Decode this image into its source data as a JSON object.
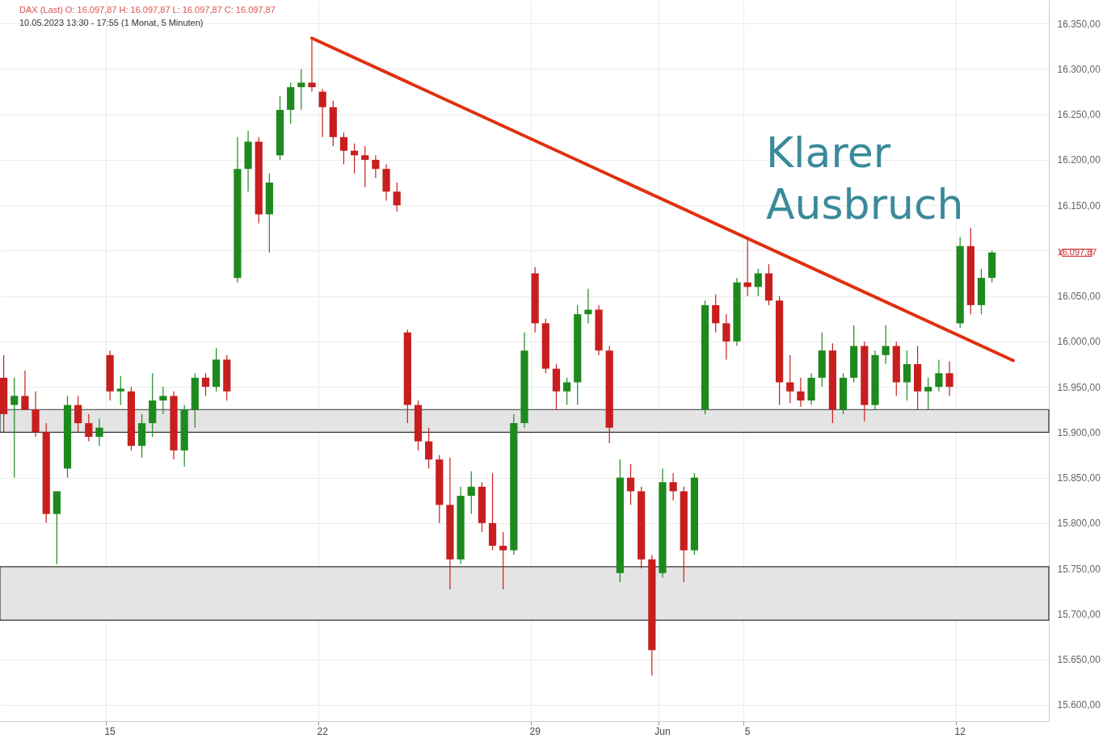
{
  "chart_data": {
    "type": "candlestick",
    "title": "DAX (Last)  O: 16.097,87  H: 16.097,87  L: 16.097,87  C: 16.097,87",
    "subtitle": "10.05.2023 13:30 - 17:55   (1 Monat, 5 Minuten)",
    "categories": [
      null,
      null,
      null,
      null,
      null,
      null,
      null,
      null,
      null,
      null,
      "15",
      null,
      null,
      null,
      null,
      null,
      null,
      null,
      null,
      null,
      null,
      null,
      null,
      null,
      null,
      null,
      null,
      null,
      null,
      null,
      "22",
      null,
      null,
      null,
      null,
      null,
      null,
      null,
      null,
      null,
      null,
      null,
      null,
      null,
      null,
      null,
      null,
      null,
      null,
      null,
      "29",
      null,
      null,
      null,
      null,
      null,
      null,
      null,
      null,
      null,
      null,
      null,
      "Jun",
      null,
      null,
      null,
      null,
      null,
      null,
      null,
      "5",
      null,
      null,
      null,
      null,
      null,
      null,
      null,
      null,
      null,
      null,
      null,
      null,
      null,
      null,
      null,
      null,
      null,
      null,
      null,
      "12",
      null,
      null,
      null,
      null,
      null,
      null,
      null,
      null
    ],
    "ohlc": [
      [
        15960,
        15985,
        15900,
        15920
      ],
      [
        15930,
        15960,
        15850,
        15940
      ],
      [
        15940,
        15968,
        15925,
        15925
      ],
      [
        15925,
        15945,
        15895,
        15900
      ],
      [
        15900,
        15910,
        15800,
        15810
      ],
      [
        15810,
        15835,
        15755,
        15835
      ],
      [
        15860,
        15940,
        15850,
        15930
      ],
      [
        15930,
        15940,
        15900,
        15910
      ],
      [
        15910,
        15920,
        15890,
        15895
      ],
      [
        15895,
        15915,
        15885,
        15905
      ],
      [
        15985,
        15990,
        15935,
        15945
      ],
      [
        15945,
        15962,
        15930,
        15948
      ],
      [
        15945,
        15950,
        15880,
        15885
      ],
      [
        15885,
        15920,
        15872,
        15910
      ],
      [
        15910,
        15965,
        15895,
        15935
      ],
      [
        15935,
        15950,
        15920,
        15940
      ],
      [
        15940,
        15945,
        15870,
        15880
      ],
      [
        15880,
        15930,
        15862,
        15925
      ],
      [
        15925,
        15965,
        15905,
        15960
      ],
      [
        15960,
        15965,
        15940,
        15950
      ],
      [
        15950,
        15993,
        15945,
        15980
      ],
      [
        15980,
        15985,
        15935,
        15945
      ],
      [
        16070,
        16225,
        16065,
        16190
      ],
      [
        16190,
        16232,
        16165,
        16220
      ],
      [
        16220,
        16225,
        16130,
        16140
      ],
      [
        16140,
        16185,
        16098,
        16175
      ],
      [
        16205,
        16270,
        16200,
        16255
      ],
      [
        16255,
        16285,
        16240,
        16280
      ],
      [
        16280,
        16300,
        16255,
        16285
      ],
      [
        16285,
        16332,
        16275,
        16280
      ],
      [
        16275,
        16278,
        16225,
        16258
      ],
      [
        16258,
        16265,
        16215,
        16225
      ],
      [
        16225,
        16230,
        16195,
        16210
      ],
      [
        16210,
        16218,
        16185,
        16205
      ],
      [
        16205,
        16215,
        16170,
        16200
      ],
      [
        16200,
        16205,
        16180,
        16190
      ],
      [
        16190,
        16195,
        16155,
        16165
      ],
      [
        16165,
        16175,
        16143,
        16150
      ],
      [
        16010,
        16013,
        15910,
        15930
      ],
      [
        15930,
        15935,
        15880,
        15890
      ],
      [
        15890,
        15905,
        15860,
        15870
      ],
      [
        15870,
        15875,
        15800,
        15820
      ],
      [
        15820,
        15872,
        15727,
        15760
      ],
      [
        15760,
        15840,
        15755,
        15830
      ],
      [
        15830,
        15857,
        15810,
        15840
      ],
      [
        15840,
        15845,
        15790,
        15800
      ],
      [
        15800,
        15855,
        15770,
        15775
      ],
      [
        15775,
        15790,
        15727,
        15770
      ],
      [
        15770,
        15920,
        15765,
        15910
      ],
      [
        15910,
        16010,
        15905,
        15990
      ],
      [
        16075,
        16082,
        16010,
        16020
      ],
      [
        16020,
        16025,
        15965,
        15970
      ],
      [
        15970,
        15975,
        15925,
        15945
      ],
      [
        15945,
        15960,
        15930,
        15955
      ],
      [
        15955,
        16040,
        15930,
        16030
      ],
      [
        16030,
        16058,
        16020,
        16035
      ],
      [
        16035,
        16040,
        15985,
        15990
      ],
      [
        15990,
        15995,
        15888,
        15905
      ],
      [
        15745,
        15870,
        15735,
        15850
      ],
      [
        15850,
        15865,
        15820,
        15835
      ],
      [
        15835,
        15840,
        15750,
        15760
      ],
      [
        15760,
        15765,
        15632,
        15660
      ],
      [
        15745,
        15860,
        15740,
        15845
      ],
      [
        15845,
        15855,
        15825,
        15835
      ],
      [
        15835,
        15840,
        15735,
        15770
      ],
      [
        15770,
        15855,
        15765,
        15850
      ],
      [
        15925,
        16045,
        15920,
        16040
      ],
      [
        16040,
        16052,
        16010,
        16020
      ],
      [
        16020,
        16030,
        15980,
        16000
      ],
      [
        16000,
        16070,
        15995,
        16065
      ],
      [
        16065,
        16115,
        16050,
        16060
      ],
      [
        16060,
        16080,
        16050,
        16075
      ],
      [
        16075,
        16085,
        16040,
        16045
      ],
      [
        16045,
        16050,
        15930,
        15955
      ],
      [
        15955,
        15985,
        15932,
        15945
      ],
      [
        15945,
        15960,
        15928,
        15935
      ],
      [
        15935,
        15965,
        15930,
        15960
      ],
      [
        15960,
        16010,
        15950,
        15990
      ],
      [
        15990,
        15998,
        15910,
        15925
      ],
      [
        15925,
        15965,
        15920,
        15960
      ],
      [
        15960,
        16018,
        15955,
        15995
      ],
      [
        15995,
        16000,
        15912,
        15930
      ],
      [
        15930,
        15990,
        15925,
        15985
      ],
      [
        15985,
        16018,
        15975,
        15995
      ],
      [
        15995,
        16000,
        15940,
        15955
      ],
      [
        15955,
        15990,
        15935,
        15975
      ],
      [
        15975,
        15995,
        15925,
        15945
      ],
      [
        15945,
        15960,
        15925,
        15950
      ],
      [
        15950,
        15980,
        15945,
        15965
      ],
      [
        15965,
        15978,
        15940,
        15950
      ],
      [
        16020,
        16115,
        16015,
        16105
      ],
      [
        16105,
        16125,
        16030,
        16040
      ],
      [
        16040,
        16080,
        16030,
        16070
      ],
      [
        16070,
        16100,
        16065,
        16098
      ],
      null,
      null,
      null,
      null,
      null
    ],
    "colors": [
      "#c81e1e",
      "#1e8a1e",
      "#c81e1e",
      "#c81e1e",
      "#c81e1e",
      "#1e8a1e",
      "#1e8a1e",
      "#c81e1e",
      "#c81e1e",
      "#1e8a1e",
      "#c81e1e",
      "#1e8a1e",
      "#c81e1e",
      "#1e8a1e",
      "#1e8a1e",
      "#1e8a1e",
      "#c81e1e",
      "#1e8a1e",
      "#1e8a1e",
      "#c81e1e",
      "#1e8a1e",
      "#c81e1e",
      "#1e8a1e",
      "#1e8a1e",
      "#c81e1e",
      "#1e8a1e",
      "#1e8a1e",
      "#1e8a1e",
      "#1e8a1e",
      "#c81e1e",
      "#c81e1e",
      "#c81e1e",
      "#c81e1e",
      "#c81e1e",
      "#c81e1e",
      "#c81e1e",
      "#c81e1e",
      "#c81e1e",
      "#c81e1e",
      "#c81e1e",
      "#c81e1e",
      "#c81e1e",
      "#c81e1e",
      "#1e8a1e",
      "#1e8a1e",
      "#c81e1e",
      "#c81e1e",
      "#c81e1e",
      "#1e8a1e",
      "#1e8a1e",
      "#c81e1e",
      "#c81e1e",
      "#c81e1e",
      "#1e8a1e",
      "#1e8a1e",
      "#1e8a1e",
      "#c81e1e",
      "#c81e1e",
      "#1e8a1e",
      "#c81e1e",
      "#c81e1e",
      "#c81e1e",
      "#1e8a1e",
      "#c81e1e",
      "#c81e1e",
      "#1e8a1e",
      "#1e8a1e",
      "#c81e1e",
      "#c81e1e",
      "#1e8a1e",
      "#c81e1e",
      "#1e8a1e",
      "#c81e1e",
      "#c81e1e",
      "#c81e1e",
      "#c81e1e",
      "#1e8a1e",
      "#1e8a1e",
      "#c81e1e",
      "#1e8a1e",
      "#1e8a1e",
      "#c81e1e",
      "#1e8a1e",
      "#1e8a1e",
      "#c81e1e",
      "#1e8a1e",
      "#c81e1e",
      "#1e8a1e",
      "#1e8a1e",
      "#c81e1e",
      "#1e8a1e",
      "#c81e1e",
      "#1e8a1e",
      "#1e8a1e",
      null,
      null,
      null,
      null,
      null
    ],
    "series": [
      {
        "type": "line",
        "color": "#e0300f",
        "values": [
          null,
          null,
          null,
          null,
          null,
          null,
          null,
          null,
          null,
          null,
          null,
          null,
          null,
          null,
          null,
          null,
          null,
          null,
          null,
          null,
          null,
          null,
          null,
          null,
          null,
          null,
          null,
          null,
          null,
          16334,
          null,
          null,
          null,
          null,
          null,
          null,
          null,
          null,
          null,
          null,
          null,
          null,
          null,
          null,
          null,
          null,
          null,
          null,
          null,
          null,
          null,
          null,
          null,
          null,
          null,
          null,
          null,
          null,
          null,
          null,
          null,
          null,
          null,
          null,
          null,
          null,
          null,
          null,
          null,
          null,
          null,
          null,
          null,
          null,
          null,
          null,
          null,
          null,
          null,
          null,
          null,
          null,
          null,
          null,
          null,
          null,
          null,
          null,
          null,
          null,
          null,
          null,
          null,
          null,
          null,
          15979,
          null,
          null,
          null
        ]
      }
    ],
    "ylim": [
      15582,
      16376
    ],
    "yticks": [
      {
        "value": 15600,
        "label": "15.600,00"
      },
      {
        "value": 15650,
        "label": "15.650,00"
      },
      {
        "value": 15700,
        "label": "15.700,00"
      },
      {
        "value": 15750,
        "label": "15.750,00"
      },
      {
        "value": 15800,
        "label": "15.800,00"
      },
      {
        "value": 15850,
        "label": "15.850,00"
      },
      {
        "value": 15900,
        "label": "15.900,00"
      },
      {
        "value": 15950,
        "label": "15.950,00"
      },
      {
        "value": 16000,
        "label": "16.000,00"
      },
      {
        "value": 16050,
        "label": "16.050,00"
      },
      {
        "value": 16100,
        "label": null
      },
      {
        "value": 16150,
        "label": "16.150,00"
      },
      {
        "value": 16200,
        "label": "16.200,00"
      },
      {
        "value": 16250,
        "label": "16.250,00"
      },
      {
        "value": 16300,
        "label": "16.300,00"
      },
      {
        "value": 16350,
        "label": "16.350,00"
      }
    ],
    "bands": [
      {
        "axis": "y",
        "from": 15900,
        "to": 15925,
        "color": "#e4e4e4"
      },
      {
        "axis": "y",
        "from": 15693,
        "to": 15752,
        "color": "#e4e4e4"
      }
    ],
    "annotations": [
      "Klarer Ausbruch",
      "16.097,87"
    ],
    "grid": true
  }
}
